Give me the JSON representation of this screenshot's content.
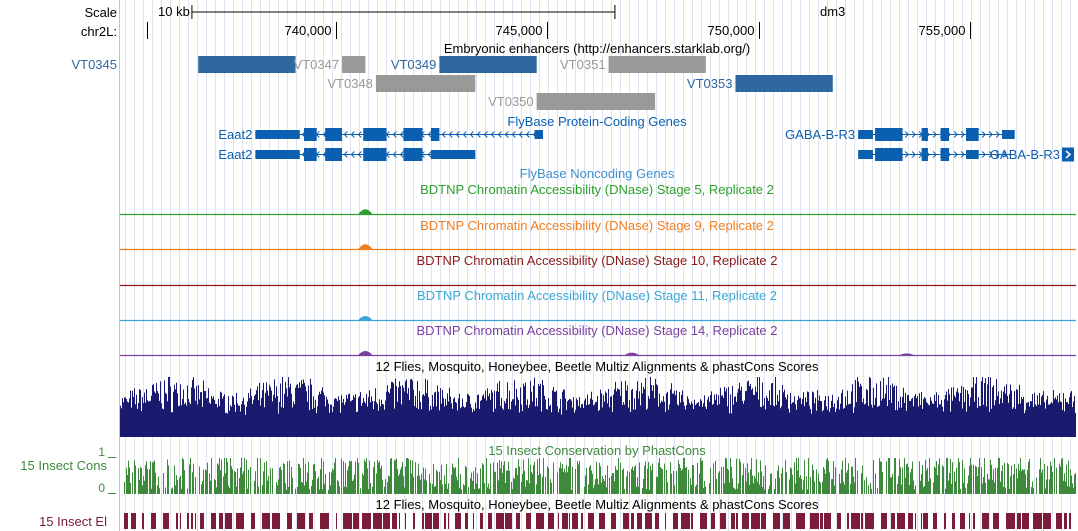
{
  "ruler": {
    "scale_label": "Scale",
    "chrom_label": "chr2L:",
    "scale_bar_label": "10 kb",
    "assembly": "dm3",
    "positions": [
      {
        "label": "740,000",
        "pos": 740000
      },
      {
        "label": "745,000",
        "pos": 745000
      },
      {
        "label": "750,000",
        "pos": 750000
      },
      {
        "label": "755,000",
        "pos": 755000
      }
    ]
  },
  "enhancers": {
    "title": "Embryonic enhancers (http://enhancers.starklab.org/)",
    "color_primary": "#2f67a0",
    "color_secondary": "#999999",
    "items": [
      {
        "name": "VT0345",
        "start": 736750,
        "end": 739050,
        "row": 0,
        "color": "primary",
        "label_side": "left_margin"
      },
      {
        "name": "VT0347",
        "start": 740150,
        "end": 740700,
        "row": 0,
        "color": "secondary",
        "label_side": "before"
      },
      {
        "name": "VT0349",
        "start": 742450,
        "end": 744750,
        "row": 0,
        "color": "primary",
        "label_side": "before"
      },
      {
        "name": "VT0351",
        "start": 746450,
        "end": 748750,
        "row": 0,
        "color": "secondary",
        "label_side": "before"
      },
      {
        "name": "VT0348",
        "start": 740950,
        "end": 743300,
        "row": 1,
        "color": "secondary",
        "label_side": "before"
      },
      {
        "name": "VT0353",
        "start": 749450,
        "end": 751750,
        "row": 1,
        "color": "primary",
        "label_side": "before"
      },
      {
        "name": "VT0350",
        "start": 744750,
        "end": 747550,
        "row": 2,
        "color": "secondary",
        "label_side": "before"
      }
    ]
  },
  "genes": {
    "title": "FlyBase Protein-Coding Genes",
    "color": "#0b5fb0",
    "items": [
      {
        "name": "Eaat2",
        "start": 738100,
        "end": 744900,
        "row": 0,
        "label_side": "before",
        "strand": "-",
        "exons": [
          [
            738100,
            739150
          ],
          [
            739250,
            739550
          ],
          [
            739750,
            740150
          ],
          [
            740650,
            741200
          ],
          [
            741600,
            742050
          ],
          [
            742250,
            742450
          ],
          [
            744700,
            744900
          ]
        ]
      },
      {
        "name": "Eaat2",
        "start": 738100,
        "end": 743300,
        "row": 1,
        "label_side": "before",
        "strand": "-",
        "exons": [
          [
            738100,
            739150
          ],
          [
            739250,
            739550
          ],
          [
            739750,
            740150
          ],
          [
            740650,
            741200
          ],
          [
            741600,
            742050
          ],
          [
            742250,
            743300
          ]
        ]
      },
      {
        "name": "GABA-B-R3",
        "start": 752350,
        "end": 756050,
        "row": 0,
        "label_side": "before",
        "strand": "+",
        "exons": [
          [
            752350,
            752700
          ],
          [
            752750,
            753400
          ],
          [
            753850,
            754000
          ],
          [
            754300,
            754500
          ],
          [
            754900,
            755200
          ],
          [
            755750,
            756050
          ]
        ]
      },
      {
        "name": "GABA-B-R3",
        "start": 752350,
        "end": 756050,
        "row": 1,
        "label_side": "inside_right",
        "strand": "+",
        "exons": [
          [
            752350,
            752700
          ],
          [
            752750,
            753400
          ],
          [
            753850,
            754000
          ],
          [
            754300,
            754500
          ],
          [
            754900,
            755200
          ]
        ]
      }
    ]
  },
  "noncoding": {
    "title": "FlyBase Noncoding Genes",
    "color": "#3f8fd0"
  },
  "dnase_tracks": [
    {
      "title": "BDTNP Chromatin Accessibility (DNase) Stage 5, Replicate 2",
      "color": "#2ca02c",
      "peaks": [
        {
          "pos": 740700,
          "height": 6
        }
      ]
    },
    {
      "title": "BDTNP Chromatin Accessibility (DNase) Stage 9, Replicate 2",
      "color": "#f07e20",
      "peaks": [
        {
          "pos": 740700,
          "height": 6
        }
      ]
    },
    {
      "title": "BDTNP Chromatin Accessibility (DNase) Stage 10, Replicate 2",
      "color": "#8b1a1a",
      "peaks": []
    },
    {
      "title": "BDTNP Chromatin Accessibility (DNase) Stage 11, Replicate 2",
      "color": "#3aa7d8",
      "peaks": [
        {
          "pos": 740700,
          "height": 5
        }
      ]
    },
    {
      "title": "BDTNP Chromatin Accessibility (DNase) Stage 14, Replicate 2",
      "color": "#7b3fa0",
      "peaks": [
        {
          "pos": 740700,
          "height": 5
        },
        {
          "pos": 747000,
          "height": 3
        },
        {
          "pos": 753500,
          "height": 2
        }
      ]
    }
  ],
  "multiz": {
    "title": "12 Flies, Mosquito, Honeybee, Beetle Multiz Alignments & phastCons Scores",
    "color": "#1a1a6e"
  },
  "phastcons": {
    "title": "15 Insect Conservation by PhastCons",
    "side_label": "15 Insect Cons",
    "axis_max": "1",
    "axis_min": "0",
    "color": "#3d8a3d"
  },
  "elements": {
    "title": "12 Flies, Mosquito, Honeybee, Beetle Multiz Alignments & phastCons Scores",
    "side_label": "15 Insect El",
    "color": "#7a1c3a"
  }
}
